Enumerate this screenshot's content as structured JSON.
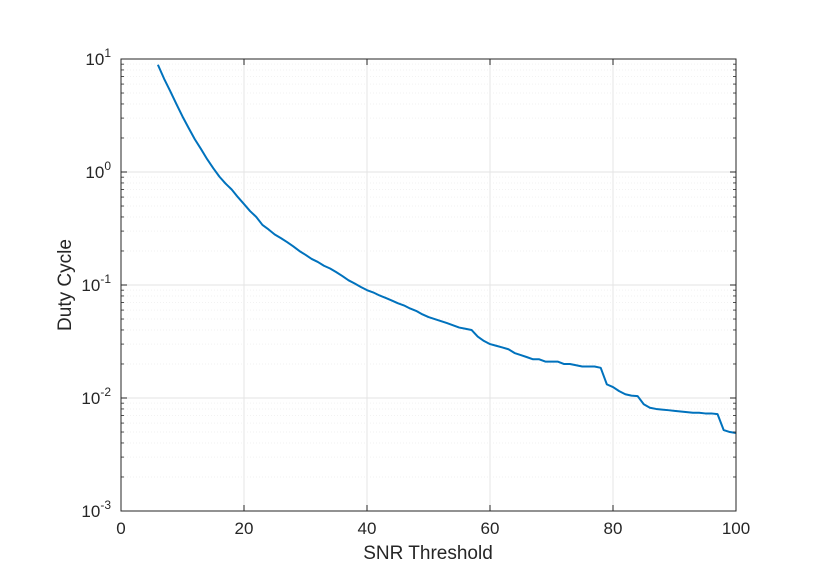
{
  "chart_data": {
    "type": "line",
    "title": "",
    "xlabel": "SNR Threshold",
    "ylabel": "Duty Cycle",
    "xlim": [
      0,
      100
    ],
    "ylim": [
      0.001,
      10
    ],
    "yscale": "log",
    "grid": true,
    "x_ticks": [
      0,
      20,
      40,
      60,
      80,
      100
    ],
    "x_tick_labels": [
      "0",
      "20",
      "40",
      "60",
      "80",
      "100"
    ],
    "y_ticks": [
      0.001,
      0.01,
      0.1,
      1,
      10
    ],
    "y_tick_labels": [
      {
        "base": "10",
        "exp": "-3"
      },
      {
        "base": "10",
        "exp": "-2"
      },
      {
        "base": "10",
        "exp": "-1"
      },
      {
        "base": "10",
        "exp": "0"
      },
      {
        "base": "10",
        "exp": "1"
      }
    ],
    "series": [
      {
        "color": "#0072BD",
        "x": [
          6,
          7,
          8,
          9,
          10,
          11,
          12,
          13,
          14,
          15,
          16,
          17,
          18,
          19,
          20,
          21,
          22,
          23,
          24,
          25,
          26,
          27,
          28,
          29,
          30,
          31,
          32,
          33,
          34,
          35,
          36,
          37,
          38,
          39,
          40,
          41,
          42,
          43,
          44,
          45,
          46,
          47,
          48,
          49,
          50,
          51,
          52,
          53,
          54,
          55,
          56,
          57,
          58,
          59,
          60,
          61,
          62,
          63,
          64,
          65,
          66,
          67,
          68,
          69,
          70,
          71,
          72,
          73,
          74,
          75,
          76,
          77,
          78,
          79,
          80,
          81,
          82,
          83,
          84,
          85,
          86,
          87,
          88,
          89,
          90,
          91,
          92,
          93,
          94,
          95,
          96,
          97,
          98,
          99,
          100
        ],
        "y": [
          8.9,
          6.7,
          5.2,
          4.0,
          3.1,
          2.45,
          1.95,
          1.6,
          1.3,
          1.08,
          0.91,
          0.79,
          0.7,
          0.6,
          0.52,
          0.45,
          0.4,
          0.34,
          0.31,
          0.28,
          0.26,
          0.24,
          0.22,
          0.2,
          0.185,
          0.17,
          0.16,
          0.148,
          0.14,
          0.13,
          0.12,
          0.11,
          0.103,
          0.096,
          0.09,
          0.086,
          0.081,
          0.077,
          0.073,
          0.069,
          0.066,
          0.062,
          0.059,
          0.055,
          0.052,
          0.05,
          0.048,
          0.046,
          0.044,
          0.042,
          0.041,
          0.04,
          0.035,
          0.032,
          0.03,
          0.029,
          0.028,
          0.027,
          0.025,
          0.024,
          0.023,
          0.022,
          0.022,
          0.021,
          0.021,
          0.021,
          0.02,
          0.02,
          0.0195,
          0.019,
          0.019,
          0.019,
          0.0185,
          0.0132,
          0.0125,
          0.0115,
          0.0108,
          0.0105,
          0.0104,
          0.0088,
          0.0082,
          0.008,
          0.0079,
          0.0078,
          0.0077,
          0.0076,
          0.0075,
          0.0074,
          0.0074,
          0.0073,
          0.0073,
          0.0072,
          0.0052,
          0.005,
          0.0049
        ]
      }
    ]
  }
}
